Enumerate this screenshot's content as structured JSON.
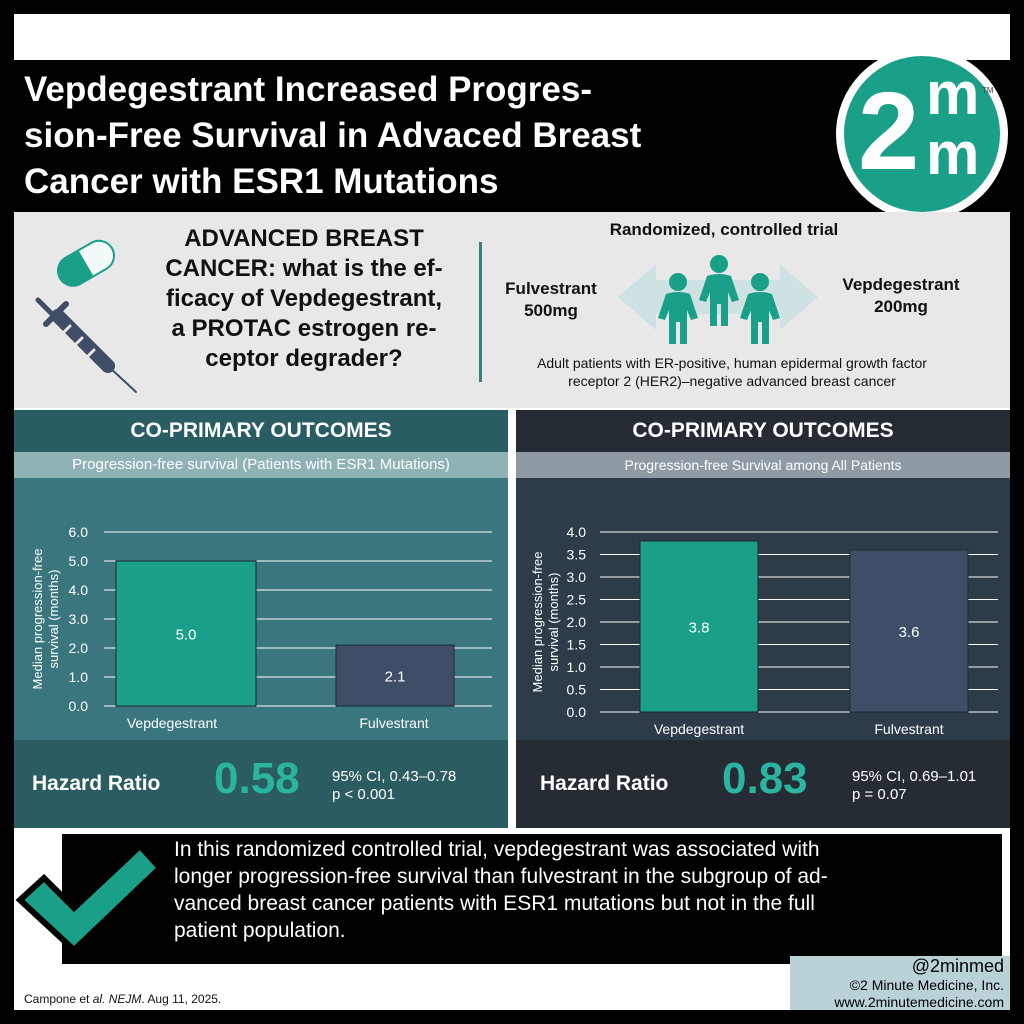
{
  "header": {
    "title_lines": [
      "Vepdegestrant Increased Progres-",
      "sion-Free Survival in Advaced Breast",
      "Cancer with ESR1 Mutations"
    ],
    "logo_text": "2",
    "logo_m_top": "m",
    "logo_m_bottom": "m",
    "logo_tm": "TM"
  },
  "study": {
    "question_lines": [
      "ADVANCED BREAST",
      "CANCER: what is the ef-",
      "ficacy of Vepdegestrant,",
      "a PROTAC estrogen re-",
      "ceptor degrader?"
    ],
    "design": "Randomized, controlled trial",
    "arm_left": [
      "Fulvestrant",
      "500mg"
    ],
    "arm_right": [
      "Vepdegestrant",
      "200mg"
    ],
    "population_lines": [
      "Adult patients with ER-positive, human epidermal growth factor",
      "receptor 2 (HER2)–negative advanced breast cancer"
    ]
  },
  "colors": {
    "teal": "#1aa089",
    "slate": "#3f4d66",
    "hr_value": "#2bb5a0"
  },
  "chart_data": [
    {
      "type": "bar",
      "heading": "CO-PRIMARY OUTCOMES",
      "title": "Progression-free survival (Patients with ESR1 Mutations)",
      "ylabel_lines": [
        "Median progression-free",
        "survival (months)"
      ],
      "categories": [
        "Vepdegestrant",
        "Fulvestrant"
      ],
      "values": [
        5.0,
        2.1
      ],
      "value_labels": [
        "5.0",
        "2.1"
      ],
      "ylim": [
        0,
        6
      ],
      "yticks": [
        "0.0",
        "1.0",
        "2.0",
        "3.0",
        "4.0",
        "5.0",
        "6.0"
      ],
      "bar_colors": [
        "#1aa089",
        "#3f4d66"
      ],
      "grid": true,
      "hazard": {
        "label": "Hazard Ratio",
        "value": "0.58",
        "ci": "95% CI, 0.43–0.78",
        "p": "p < 0.001"
      }
    },
    {
      "type": "bar",
      "heading": "CO-PRIMARY OUTCOMES",
      "title": "Progression-free Survival among All Patients",
      "ylabel_lines": [
        "Median progression-free",
        "survival (months)"
      ],
      "categories": [
        "Vepdegestrant",
        "Fulvestrant"
      ],
      "values": [
        3.8,
        3.6
      ],
      "value_labels": [
        "3.8",
        "3.6"
      ],
      "ylim": [
        0,
        4
      ],
      "yticks": [
        "0.0",
        "0.5",
        "1.0",
        "1.5",
        "2.0",
        "2.5",
        "3.0",
        "3.5",
        "4.0"
      ],
      "bar_colors": [
        "#1aa089",
        "#3f4d66"
      ],
      "grid": true,
      "hazard": {
        "label": "Hazard Ratio",
        "value": "0.83",
        "ci": "95% CI, 0.69–1.01",
        "p": "p = 0.07"
      }
    }
  ],
  "conclusion_lines": [
    "In this randomized controlled trial, vepdegestrant was associated with",
    "longer progression-free survival than fulvestrant in the subgroup of ad-",
    "vanced breast cancer patients with ESR1 mutations but not in the full",
    "patient population."
  ],
  "footer": {
    "citation_pre": "Campone et ",
    "citation_em": "al. NEJM",
    "citation_post": ". Aug 11, 2025.",
    "handle": "@2minmed",
    "copyright": "©2 Minute Medicine, Inc.",
    "website": "www.2minutemedicine.com"
  }
}
